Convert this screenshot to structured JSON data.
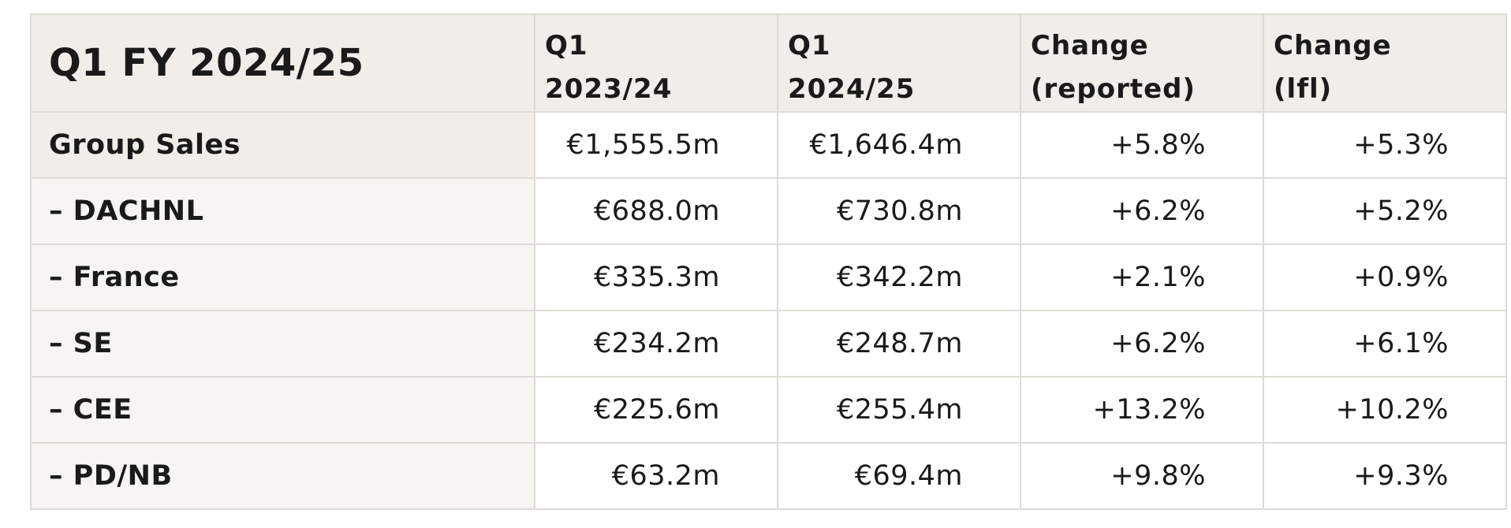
{
  "table": {
    "title": "Q1 FY 2024/25",
    "columns": [
      {
        "line1": "Q1",
        "line2": "2023/24"
      },
      {
        "line1": "Q1",
        "line2": "2024/25"
      },
      {
        "line1": "Change",
        "line2": "(reported)"
      },
      {
        "line1": "Change",
        "line2": "(lfl)"
      }
    ],
    "rows": [
      {
        "label": "Group Sales",
        "values": [
          "€1,555.5m",
          "€1,646.4m",
          "+5.8%",
          "+5.3%"
        ]
      },
      {
        "label": "– DACHNL",
        "values": [
          "€688.0m",
          "€730.8m",
          "+6.2%",
          "+5.2%"
        ]
      },
      {
        "label": "– France",
        "values": [
          "€335.3m",
          "€342.2m",
          "+2.1%",
          "+0.9%"
        ]
      },
      {
        "label": "– SE",
        "values": [
          "€234.2m",
          "€248.7m",
          "+6.2%",
          "+6.1%"
        ]
      },
      {
        "label": "– CEE",
        "values": [
          "€225.6m",
          "€255.4m",
          "+13.2%",
          "+10.2%"
        ]
      },
      {
        "label": "– PD/NB",
        "values": [
          "€63.2m",
          "€69.4m",
          "+9.8%",
          "+9.3%"
        ]
      }
    ]
  }
}
